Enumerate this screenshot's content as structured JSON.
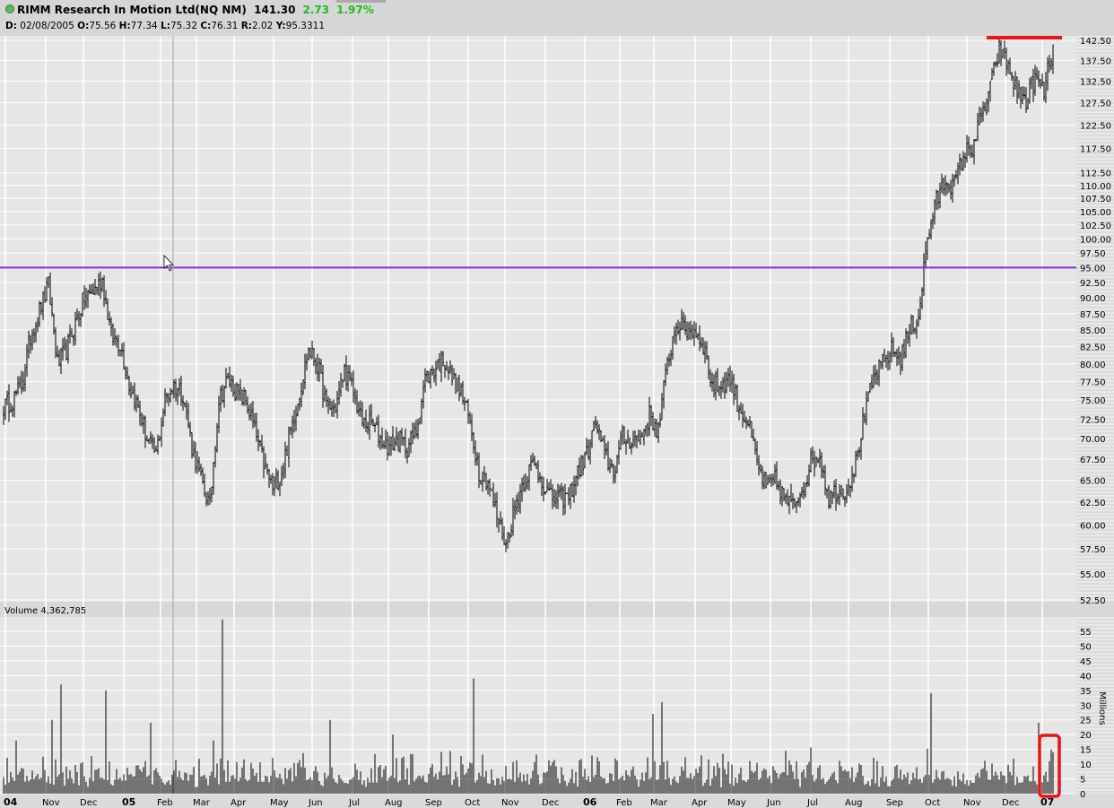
{
  "header": {
    "symbol_title": "RIMM Research In Motion Ltd(NQ NM)",
    "last": "141.30",
    "change": "2.73",
    "change_pct": "1.97%",
    "status_icon": "green-dot-icon",
    "readout": {
      "D_label": "D:",
      "D": "02/08/2005",
      "O_label": "O:",
      "O": "75.56",
      "H_label": "H:",
      "H": "77.34",
      "L_label": "L:",
      "L": "75.32",
      "C_label": "C:",
      "C": "76.31",
      "R_label": "R:",
      "R": "2.02",
      "Y_label": "Y:",
      "Y": "95.3311"
    }
  },
  "volume_panel": {
    "label": "Volume 4,362,785",
    "unit_label": "Millions"
  },
  "colors": {
    "bg": "#e6e6e6",
    "grid": "#ffffff",
    "bars": "#000000",
    "support_line": "#8a2be2",
    "resistance_line": "#ee1111",
    "highlight_box": "#ee1111",
    "cursor_line": "#8fb0a8"
  },
  "chart_data": [
    {
      "type": "ohlc",
      "scale": "log",
      "price_ticks": [
        "142.50",
        "137.50",
        "132.50",
        "127.50",
        "122.50",
        "117.50",
        "112.50",
        "110.00",
        "107.50",
        "105.00",
        "102.50",
        "100.00",
        "97.50",
        "95.00",
        "92.50",
        "90.00",
        "87.50",
        "85.00",
        "82.50",
        "80.00",
        "77.50",
        "75.00",
        "72.50",
        "70.00",
        "67.50",
        "65.00",
        "62.50",
        "60.00",
        "57.50",
        "55.00",
        "52.50"
      ],
      "ylim": [
        52.5,
        142.5
      ],
      "x_labels": [
        {
          "t": "04",
          "bold": true
        },
        {
          "t": "Nov"
        },
        {
          "t": "Dec"
        },
        {
          "t": "05",
          "bold": true
        },
        {
          "t": "Feb"
        },
        {
          "t": "Mar"
        },
        {
          "t": "Apr"
        },
        {
          "t": "May"
        },
        {
          "t": "Jun"
        },
        {
          "t": "Jul"
        },
        {
          "t": "Aug"
        },
        {
          "t": "Sep"
        },
        {
          "t": "Oct"
        },
        {
          "t": "Nov"
        },
        {
          "t": "Dec"
        },
        {
          "t": "06",
          "bold": true
        },
        {
          "t": "Feb"
        },
        {
          "t": "Mar"
        },
        {
          "t": "Apr"
        },
        {
          "t": "May"
        },
        {
          "t": "Jun"
        },
        {
          "t": "Jul"
        },
        {
          "t": "Aug"
        },
        {
          "t": "Sep"
        },
        {
          "t": "Oct"
        },
        {
          "t": "Nov"
        },
        {
          "t": "Dec"
        },
        {
          "t": "07",
          "bold": true
        }
      ],
      "weekly_close": [
        74,
        75,
        77,
        84,
        88,
        92,
        80,
        82,
        86,
        90,
        91,
        93,
        84,
        83,
        77,
        74,
        70,
        68,
        75,
        77,
        76,
        69,
        65,
        62,
        75,
        78,
        76,
        75,
        71,
        67,
        64,
        66,
        71,
        76,
        82,
        80,
        74,
        74,
        79,
        76,
        72,
        72,
        70,
        69,
        70,
        69,
        71,
        78,
        79,
        81,
        78,
        76,
        72,
        66,
        65,
        61,
        58,
        62,
        65,
        67,
        65,
        63,
        63,
        63,
        66,
        68,
        72,
        68,
        66,
        70,
        70,
        70,
        73,
        71,
        80,
        86,
        85,
        85,
        83,
        77,
        77,
        78,
        74,
        72,
        67,
        64,
        65,
        63,
        62,
        64,
        67,
        68,
        63,
        64,
        64,
        67,
        73,
        78,
        80,
        82,
        81,
        85,
        87,
        100,
        107,
        111,
        110,
        116,
        118,
        124,
        131,
        140,
        136,
        130,
        128,
        133,
        130,
        141.3
      ],
      "horizontal_lines": [
        {
          "price": 95.0,
          "color": "#8a2be2"
        },
        {
          "price": 142.5,
          "color": "#ee1111",
          "segment": "recent"
        }
      ],
      "grid": true
    },
    {
      "type": "bar",
      "title": "Volume",
      "ylabel": "Millions",
      "ticks": [
        "55",
        "50",
        "45",
        "40",
        "35",
        "30",
        "25",
        "20",
        "15",
        "10",
        "5",
        "0"
      ],
      "ylim": [
        0,
        55
      ],
      "spikes_by_week": [
        [
          1,
          18
        ],
        [
          5,
          25
        ],
        [
          6,
          37
        ],
        [
          11,
          35
        ],
        [
          16,
          24
        ],
        [
          24,
          59
        ],
        [
          23,
          18
        ],
        [
          36,
          25
        ],
        [
          43,
          20
        ],
        [
          52,
          39
        ],
        [
          72,
          27
        ],
        [
          73,
          31
        ],
        [
          103,
          34
        ],
        [
          115,
          24
        ]
      ],
      "last_days": [
        4,
        11,
        15,
        14
      ]
    }
  ]
}
